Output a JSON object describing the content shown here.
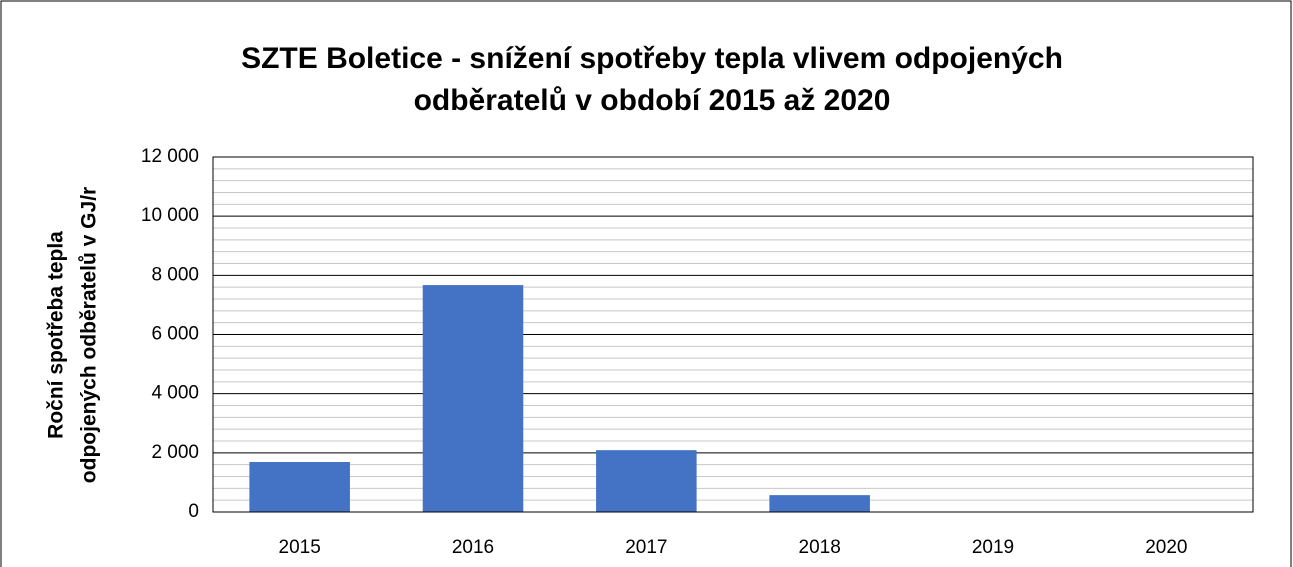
{
  "chart_data": {
    "type": "bar",
    "title": [
      "SZTE Boletice - snížení spotřeby tepla vlivem odpojených",
      "odběratelů v období 2015 až 2020"
    ],
    "y_label": [
      "Roční spotřeba tepla",
      "odpojených odběratelů v GJ/r"
    ],
    "categories": [
      "2015",
      "2016",
      "2017",
      "2018",
      "2019",
      "2020"
    ],
    "values": [
      1690,
      7670,
      2090,
      570,
      0,
      0
    ],
    "color": "#4472c4",
    "ylim": [
      0,
      12000
    ],
    "yticks": [
      0,
      {
        "value": 2000,
        "label": "2 000"
      },
      {
        "value": 4000,
        "label": "4 000"
      },
      {
        "value": 6000,
        "label": "6 000"
      },
      {
        "value": 8000,
        "label": "8 000"
      },
      {
        "value": 10000,
        "label": "10 000"
      },
      {
        "value": 12000,
        "label": "12 000"
      }
    ],
    "grid": true,
    "minor_grid_divisions": 5
  }
}
